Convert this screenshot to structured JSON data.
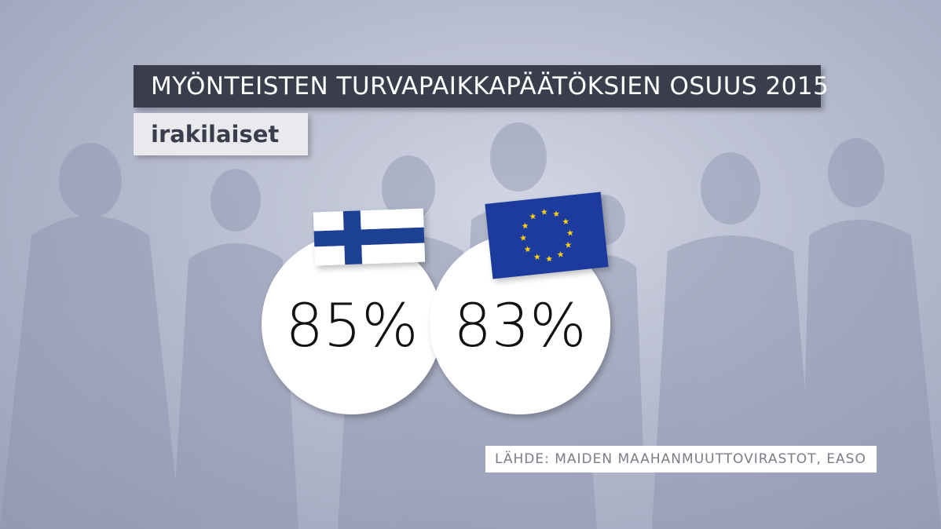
{
  "title": "MYÖNTEISTEN TURVAPAIKKAPÄÄTÖKSIEN OSUUS 2015",
  "subtitle": "irakilaiset",
  "source": "LÄHDE: MAIDEN MAAHANMUUTTOVIRASTOT, EASO",
  "colors": {
    "title_bg": "#3a3d4b",
    "subtitle_bg": "#e9e9ee",
    "circle": "#ffffff",
    "finland_blue": "#1c3f94",
    "eu_blue": "#1a3b9c",
    "eu_star": "#ffd300"
  },
  "chart_data": {
    "type": "table",
    "categories": [
      "Suomi",
      "EU"
    ],
    "icons": [
      "finland-flag",
      "eu-flag"
    ],
    "values": [
      85,
      83
    ],
    "value_labels": [
      "85%",
      "83%"
    ],
    "unit": "%"
  }
}
